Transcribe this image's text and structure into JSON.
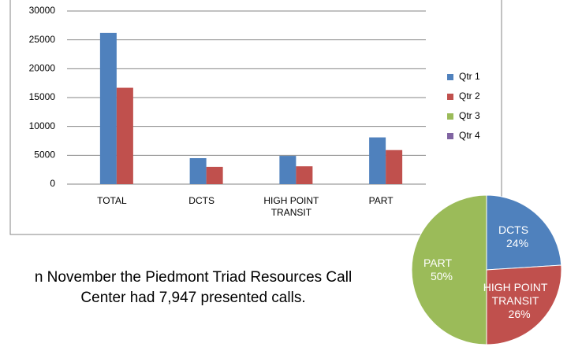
{
  "chart_data": [
    {
      "type": "bar",
      "categories": [
        "TOTAL",
        "DCTS",
        "HIGH POINT TRANSIT",
        "PART"
      ],
      "series": [
        {
          "name": "Qtr 1",
          "color": "#4f81bd",
          "values": [
            26200,
            4500,
            4900,
            8100
          ]
        },
        {
          "name": "Qtr 2",
          "color": "#c0504d",
          "values": [
            16700,
            3000,
            3100,
            5900
          ]
        },
        {
          "name": "Qtr 3",
          "color": "#9bbb59",
          "values": [
            null,
            null,
            null,
            null
          ]
        },
        {
          "name": "Qtr 4",
          "color": "#8064a2",
          "values": [
            null,
            null,
            null,
            null
          ]
        }
      ],
      "ylim": [
        0,
        30000
      ],
      "yticks": [
        0,
        5000,
        10000,
        15000,
        20000,
        25000,
        30000
      ],
      "grid": true,
      "legend": "right"
    },
    {
      "type": "pie",
      "categories": [
        "DCTS",
        "HIGH POINT TRANSIT",
        "PART"
      ],
      "values": [
        24,
        26,
        50
      ],
      "value_labels": [
        "24%",
        "26%",
        "50%"
      ],
      "colors": [
        "#4f81bd",
        "#c0504d",
        "#9bbb59"
      ]
    }
  ],
  "caption": "n November the Piedmont Triad Resources Call Center had 7,947 presented calls."
}
